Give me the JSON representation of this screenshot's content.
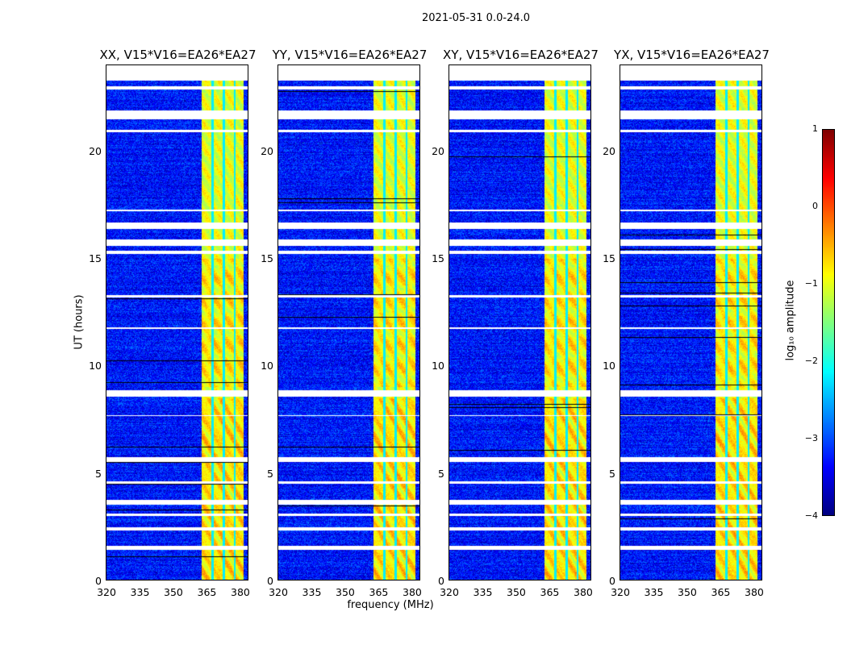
{
  "figure": {
    "suptitle": "2021-05-31 0.0-24.0"
  },
  "chart_data": {
    "type": "heatmap",
    "xlabel": "frequency (MHz)",
    "ylabel": "UT (hours)",
    "xlim": [
      320,
      384
    ],
    "ylim": [
      0,
      24
    ],
    "xticks": [
      "320",
      "335",
      "350",
      "365",
      "380"
    ],
    "yticks": [
      "0",
      "5",
      "10",
      "15",
      "20"
    ],
    "panels": [
      {
        "title": "XX, V15*V16=EA26*EA27"
      },
      {
        "title": "YY, V15*V16=EA26*EA27"
      },
      {
        "title": "XY, V15*V16=EA26*EA27"
      },
      {
        "title": "YX, V15*V16=EA26*EA27"
      }
    ],
    "bright_band_mhz": [
      363,
      382
    ],
    "band_gaps_mhz": [
      368,
      373,
      378
    ],
    "flagged_hours": [
      [
        23.3,
        24
      ],
      [
        22.9,
        23.05
      ],
      [
        21.5,
        21.9
      ],
      [
        20.9,
        21.0
      ],
      [
        17.2,
        17.3
      ],
      [
        16.4,
        16.7
      ],
      [
        15.6,
        15.9
      ],
      [
        15.2,
        15.35
      ],
      [
        13.2,
        13.3
      ],
      [
        11.7,
        11.8
      ],
      [
        8.55,
        8.85
      ],
      [
        7.65,
        7.7
      ],
      [
        5.5,
        5.75
      ],
      [
        4.5,
        4.6
      ],
      [
        3.5,
        3.75
      ],
      [
        3.0,
        3.1
      ],
      [
        2.3,
        2.45
      ],
      [
        1.4,
        1.6
      ]
    ],
    "colorbar": {
      "label": "log₁₀ amplitude",
      "range": [
        -4,
        1
      ],
      "ticks": [
        "1",
        "0",
        "−1",
        "−2",
        "−3",
        "−4"
      ],
      "colormap": "jet"
    }
  }
}
